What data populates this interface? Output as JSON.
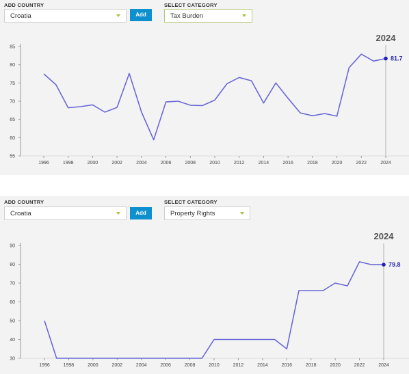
{
  "panels": [
    {
      "add_country_label": "ADD COUNTRY",
      "country_value": "Croatia",
      "add_button": "Add",
      "select_category_label": "SELECT CATEGORY",
      "category_value": "Tax Burden",
      "chart_data": {
        "type": "line",
        "x": [
          1996,
          1997,
          1998,
          1999,
          2000,
          2001,
          2002,
          2003,
          2004,
          2005,
          2006,
          2007,
          2008,
          2009,
          2010,
          2011,
          2012,
          2013,
          2014,
          2015,
          2016,
          2017,
          2018,
          2019,
          2020,
          2021,
          2022,
          2023,
          2024
        ],
        "values": [
          77.5,
          74.5,
          68.2,
          68.5,
          69.0,
          67.0,
          68.3,
          77.6,
          67.0,
          59.4,
          69.8,
          70.0,
          68.9,
          68.8,
          70.3,
          74.8,
          76.5,
          75.6,
          69.5,
          75.0,
          70.8,
          66.8,
          66.0,
          66.6,
          65.9,
          79.2,
          82.9,
          81.0,
          81.7
        ],
        "ylim": [
          55,
          85
        ],
        "yticks": [
          "55",
          "60",
          "65",
          "70",
          "75",
          "80",
          "85"
        ],
        "xticks": [
          "1996",
          "1998",
          "2000",
          "2002",
          "2004",
          "2006",
          "2008",
          "2010",
          "2012",
          "2014",
          "2016",
          "2018",
          "2020",
          "2022",
          "2024"
        ],
        "highlight_year": "2024",
        "highlight_value": "81.7",
        "line_color": "#6a67d8",
        "point_color": "#1f1fb8"
      }
    },
    {
      "add_country_label": "ADD COUNTRY",
      "country_value": "Croatia",
      "add_button": "Add",
      "select_category_label": "SELECT CATEGORY",
      "category_value": "Property Rights",
      "chart_data": {
        "type": "line",
        "x": [
          1996,
          1997,
          1998,
          1999,
          2000,
          2001,
          2002,
          2003,
          2004,
          2005,
          2006,
          2007,
          2008,
          2009,
          2010,
          2011,
          2012,
          2013,
          2014,
          2015,
          2016,
          2017,
          2018,
          2019,
          2020,
          2021,
          2022,
          2023,
          2024
        ],
        "values": [
          50,
          30,
          30,
          30,
          30,
          30,
          30,
          30,
          30,
          30,
          30,
          30,
          30,
          30,
          40,
          40,
          40,
          40,
          40,
          40,
          35,
          66,
          66,
          66,
          70,
          68.5,
          81.3,
          79.8,
          79.8
        ],
        "ylim": [
          30,
          90
        ],
        "yticks": [
          "30",
          "40",
          "50",
          "60",
          "70",
          "80",
          "90"
        ],
        "xticks": [
          "1996",
          "1998",
          "2000",
          "2002",
          "2004",
          "2006",
          "2008",
          "2010",
          "2012",
          "2014",
          "2016",
          "2018",
          "2020",
          "2022",
          "2024"
        ],
        "highlight_year": "2024",
        "highlight_value": "79.8",
        "line_color": "#6a67d8",
        "point_color": "#1f1fb8"
      }
    }
  ]
}
